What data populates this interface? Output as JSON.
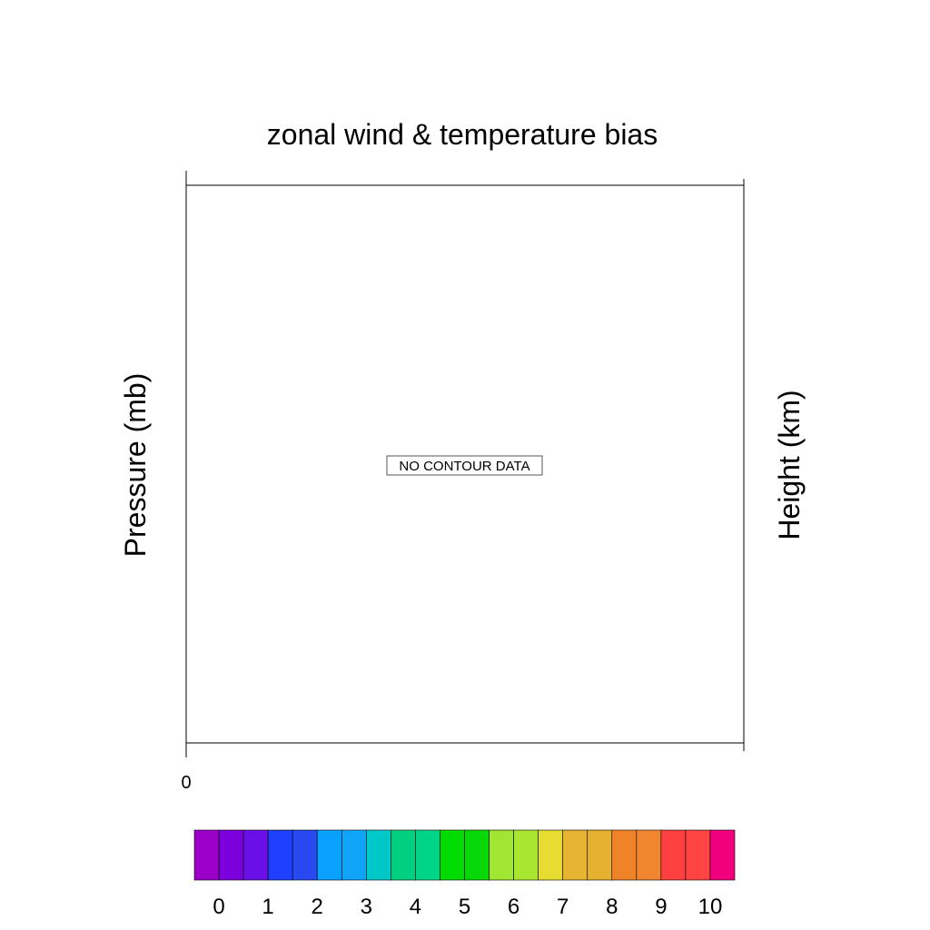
{
  "chart_data": {
    "type": "heatmap",
    "title": "zonal wind & temperature bias",
    "ylabel": "Pressure (mb)",
    "y2label": "Height (km)",
    "message": "NO CONTOUR DATA",
    "x_tick_labels": [
      "0"
    ],
    "colorbar": {
      "colors": [
        "#9b00c8",
        "#7a00dc",
        "#6a10e6",
        "#2040ff",
        "#2848f0",
        "#0aa0ff",
        "#10a4f8",
        "#00c8c8",
        "#00d080",
        "#00d488",
        "#00dc00",
        "#08d808",
        "#a0e632",
        "#a8e632",
        "#e6dc32",
        "#e6b432",
        "#e6b030",
        "#f08228",
        "#f08630",
        "#ff4040",
        "#ff4444",
        "#f0007c"
      ],
      "tick_labels": [
        "0",
        "1",
        "2",
        "3",
        "4",
        "5",
        "6",
        "7",
        "8",
        "9",
        "10"
      ]
    }
  }
}
